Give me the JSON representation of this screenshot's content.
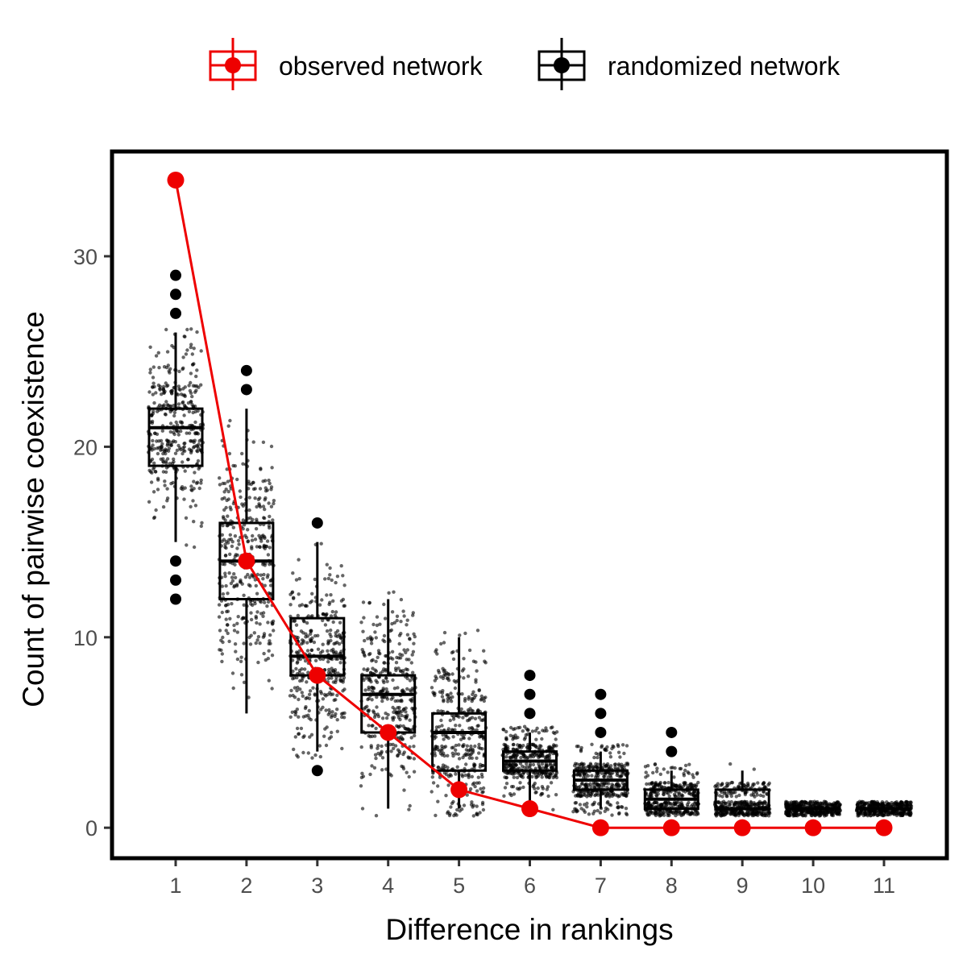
{
  "colors": {
    "observed": "#ee0000",
    "randomized": "#000000",
    "tick_text": "#4d4d4d"
  },
  "chart_data": {
    "type": "scatter",
    "title": "",
    "xlabel": "Difference in rankings",
    "ylabel": "Count of pairwise coexistence",
    "categories": [
      "1",
      "2",
      "3",
      "4",
      "5",
      "6",
      "7",
      "8",
      "9",
      "10",
      "11"
    ],
    "yticks": [
      0,
      10,
      20,
      30
    ],
    "ylim": [
      -1.6,
      35.5
    ],
    "legend_position": "top",
    "grid": false,
    "series": [
      {
        "name": "observed network",
        "kind": "line+points",
        "values": [
          34,
          14,
          8,
          5,
          2,
          1,
          0,
          0,
          0,
          0,
          0
        ]
      },
      {
        "name": "randomized network",
        "kind": "boxplot+jitter",
        "boxes": [
          {
            "min": 15,
            "q1": 19,
            "median": 21,
            "q3": 22,
            "max": 26,
            "outliers": [
              29,
              28,
              27,
              14,
              13,
              12
            ]
          },
          {
            "min": 6,
            "q1": 12,
            "median": 14,
            "q3": 16,
            "max": 22,
            "outliers": [
              24,
              23
            ]
          },
          {
            "min": 4,
            "q1": 8,
            "median": 9,
            "q3": 11,
            "max": 15,
            "outliers": [
              16,
              3
            ]
          },
          {
            "min": 1,
            "q1": 5,
            "median": 7,
            "q3": 8,
            "max": 12,
            "outliers": []
          },
          {
            "min": 1,
            "q1": 3,
            "median": 5,
            "q3": 6,
            "max": 10,
            "outliers": []
          },
          {
            "min": 1,
            "q1": 3,
            "median": 3.5,
            "q3": 4,
            "max": 5,
            "outliers": [
              8,
              7,
              6
            ]
          },
          {
            "min": 1,
            "q1": 2,
            "median": 2.5,
            "q3": 3,
            "max": 4,
            "outliers": [
              7,
              6,
              5
            ]
          },
          {
            "min": 1,
            "q1": 1,
            "median": 1.5,
            "q3": 2,
            "max": 3,
            "outliers": [
              5,
              4
            ]
          },
          {
            "min": 1,
            "q1": 1,
            "median": 1,
            "q3": 2,
            "max": 3,
            "outliers": []
          },
          {
            "min": 1,
            "q1": 1,
            "median": 1,
            "q3": 1,
            "max": 1,
            "outliers": []
          },
          {
            "min": 1,
            "q1": 1,
            "median": 1,
            "q3": 1,
            "max": 1,
            "outliers": []
          }
        ]
      }
    ]
  }
}
